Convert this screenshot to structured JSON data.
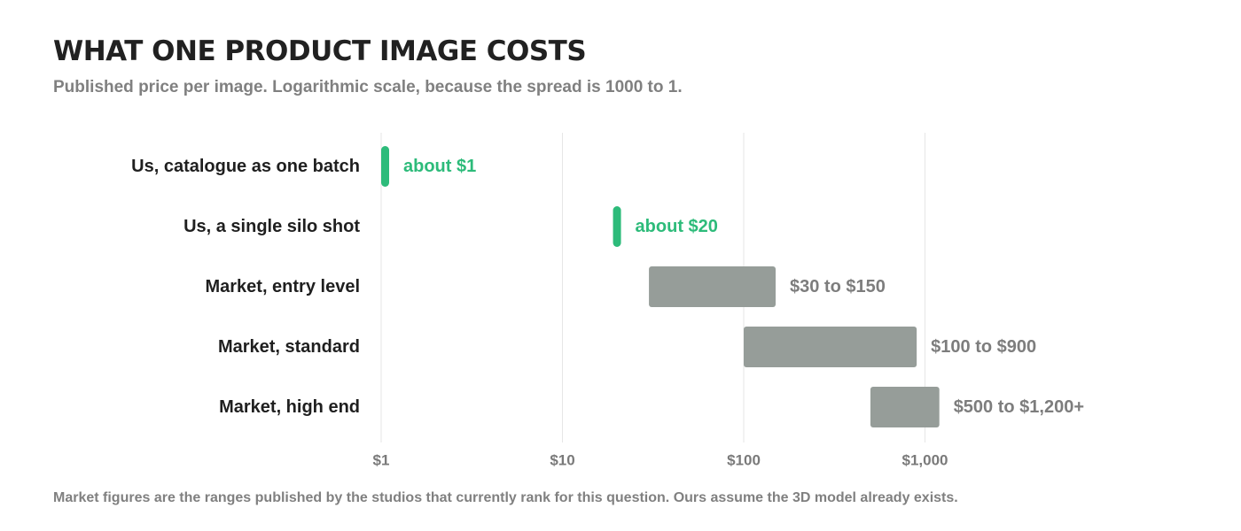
{
  "chart_data": {
    "type": "bar",
    "title": "WHAT ONE PRODUCT IMAGE COSTS",
    "subtitle": "Published price per image. Logarithmic scale, because the spread is 1000 to 1.",
    "footnote": "Market figures are the ranges published by the studios that currently rank for this question. Ours assume the 3D model already exists.",
    "x_scale": "log",
    "xlim": [
      1,
      1000
    ],
    "xticks": [
      {
        "value": 1,
        "label": "$1"
      },
      {
        "value": 10,
        "label": "$10"
      },
      {
        "value": 100,
        "label": "$100"
      },
      {
        "value": 1000,
        "label": "$1,000"
      }
    ],
    "grid": true,
    "colors": {
      "ours": "#2dbb7a",
      "market": "#969d99",
      "grid": "#e6e6e6"
    },
    "rows": [
      {
        "label": "Us, catalogue as one batch",
        "low": 1,
        "high": 1,
        "value_label": "about $1",
        "group": "ours"
      },
      {
        "label": "Us, a single silo shot",
        "low": 20,
        "high": 20,
        "value_label": "about $20",
        "group": "ours"
      },
      {
        "label": "Market, entry level",
        "low": 30,
        "high": 150,
        "value_label": "$30 to $150",
        "group": "market"
      },
      {
        "label": "Market, standard",
        "low": 100,
        "high": 900,
        "value_label": "$100 to $900",
        "group": "market"
      },
      {
        "label": "Market, high end",
        "low": 500,
        "high": 1200,
        "value_label": "$500 to $1,200+",
        "group": "market"
      }
    ]
  }
}
